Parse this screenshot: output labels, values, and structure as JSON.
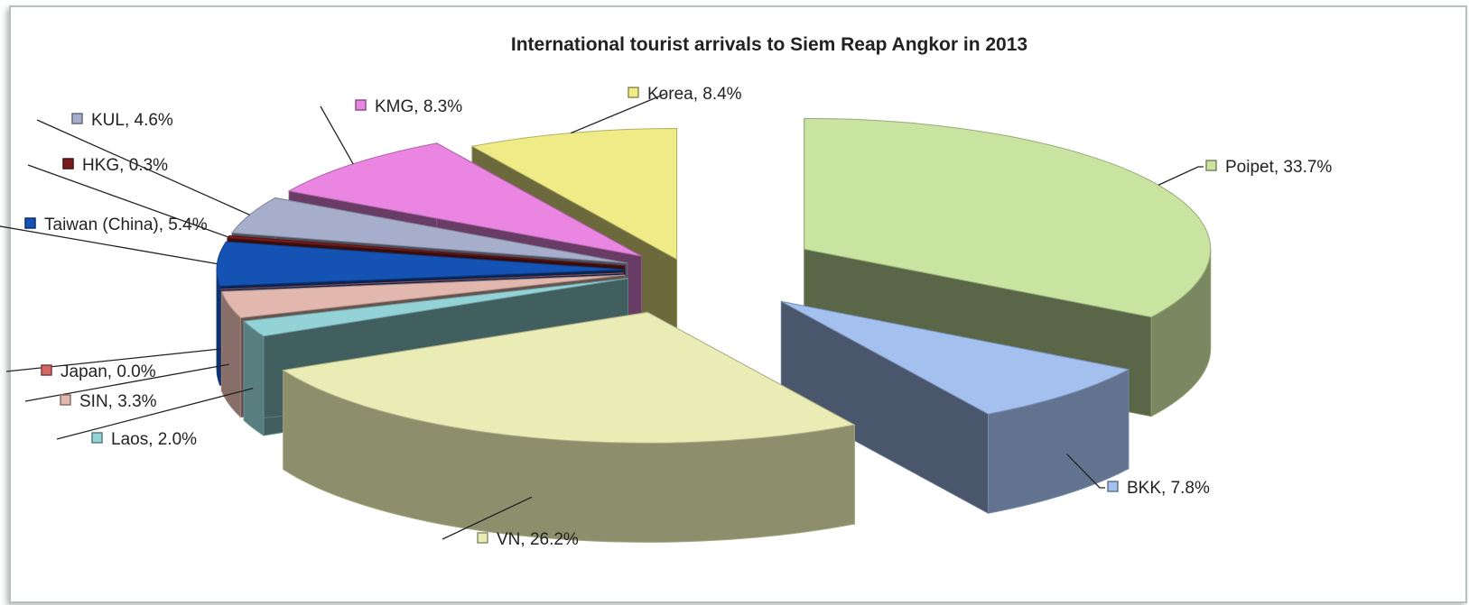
{
  "chart_data": {
    "type": "pie3d",
    "title": "International tourist arrivals to Siem Reap Angkor in 2013",
    "values": [
      33.7,
      7.8,
      26.2,
      2.0,
      3.3,
      0.0,
      5.4,
      0.3,
      4.6,
      8.3,
      8.4
    ],
    "value_labels": [
      "Poipet, 33.7%",
      "BKK, 7.8%",
      "VN, 26.2%",
      "Laos, 2.0%",
      "SIN, 3.3%",
      "Japan, 0.0%",
      "Taiwan (China), 5.4%",
      "HKG, 0.3%",
      "KUL, 4.6%",
      "KMG, 8.3%",
      "Korea, 8.4%"
    ],
    "colors": [
      "#c9e3a0",
      "#a4c0ee",
      "#e9ecb4",
      "#93d2d6",
      "#e2b8ae",
      "#d46666",
      "#1452b4",
      "#7a1c1c",
      "#a7aecb",
      "#ea86e2",
      "#efeb86"
    ]
  }
}
